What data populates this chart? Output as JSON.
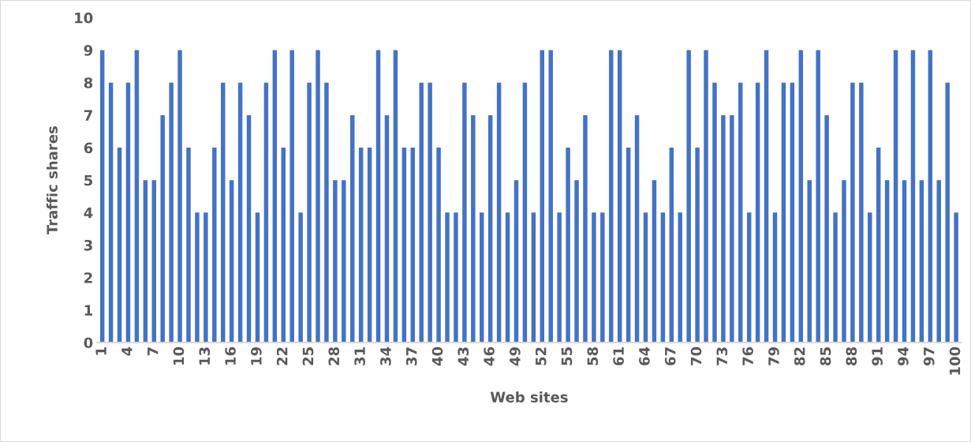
{
  "chart_data": {
    "type": "bar",
    "xlabel": "Web sites",
    "ylabel": "Traffic shares",
    "categories": [
      "1",
      null,
      null,
      "4",
      null,
      null,
      "7",
      null,
      null,
      "10",
      null,
      null,
      "13",
      null,
      null,
      "16",
      null,
      null,
      "19",
      null,
      null,
      "22",
      null,
      null,
      "25",
      null,
      null,
      "28",
      null,
      null,
      "31",
      null,
      null,
      "34",
      null,
      null,
      "37",
      null,
      null,
      "40",
      null,
      null,
      "43",
      null,
      null,
      "46",
      null,
      null,
      "49",
      null,
      null,
      "52",
      null,
      null,
      "55",
      null,
      null,
      "58",
      null,
      null,
      "61",
      null,
      null,
      "64",
      null,
      null,
      "67",
      null,
      null,
      "70",
      null,
      null,
      "73",
      null,
      null,
      "76",
      null,
      null,
      "79",
      null,
      null,
      "82",
      null,
      null,
      "85",
      null,
      null,
      "88",
      null,
      null,
      "91",
      null,
      null,
      "94",
      null,
      null,
      "97",
      null,
      null,
      "100"
    ],
    "values": [
      9,
      8,
      6,
      8,
      9,
      5,
      5,
      7,
      8,
      9,
      6,
      4,
      4,
      6,
      8,
      5,
      8,
      7,
      4,
      8,
      9,
      6,
      9,
      4,
      8,
      9,
      8,
      5,
      5,
      7,
      6,
      6,
      9,
      7,
      9,
      6,
      6,
      8,
      8,
      6,
      4,
      4,
      8,
      7,
      4,
      7,
      8,
      4,
      5,
      8,
      4,
      9,
      9,
      4,
      6,
      5,
      7,
      4,
      4,
      9,
      9,
      6,
      7,
      4,
      5,
      4,
      6,
      4,
      9,
      6,
      9,
      8,
      7,
      7,
      8,
      4,
      8,
      9,
      4,
      8,
      8,
      9,
      5,
      9,
      7,
      4,
      5,
      8,
      8,
      4,
      6,
      5,
      9,
      5,
      9,
      5,
      9,
      5,
      8,
      4
    ],
    "color": "#4472c4",
    "ylim": [
      0,
      10
    ],
    "yticks": [
      0,
      1,
      2,
      3,
      4,
      5,
      6,
      7,
      8,
      9,
      10
    ],
    "grid": false
  }
}
